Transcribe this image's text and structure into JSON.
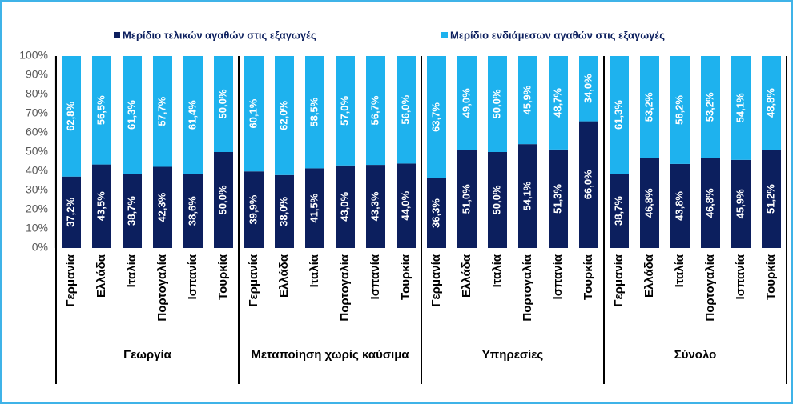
{
  "chart_data": {
    "type": "stacked_bar",
    "groups": [
      "Γεωργία",
      "Μεταποίηση χωρίς καύσιμα",
      "Υπηρεσίες",
      "Σύνολο"
    ],
    "categories": [
      "Γερμανία",
      "Ελλάδα",
      "Ιταλία",
      "Πορτογαλία",
      "Ισπανία",
      "Τουρκία",
      "Γερμανία",
      "Ελλάδα",
      "Ιταλία",
      "Πορτογαλία",
      "Ισπανία",
      "Τουρκία",
      "Γερμανία",
      "Ελλάδα",
      "Ιταλία",
      "Πορτογαλία",
      "Ισπανία",
      "Τουρκία",
      "Γερμανία",
      "Ελλάδα",
      "Ιταλία",
      "Πορτογαλία",
      "Ισπανία",
      "Τουρκία"
    ],
    "series": [
      {
        "name": "Μερίδιο τελικών αγαθών στις εξαγωγές",
        "color": "#0c1f5e",
        "values": [
          37.2,
          43.5,
          38.7,
          42.3,
          38.6,
          50.0,
          39.9,
          38.0,
          41.5,
          43.0,
          43.3,
          44.0,
          36.3,
          51.0,
          50.0,
          54.1,
          51.3,
          66.0,
          38.7,
          46.8,
          43.8,
          46.8,
          45.9,
          51.2
        ],
        "value_labels": [
          "37,2%",
          "43,5%",
          "38,7%",
          "42,3%",
          "38,6%",
          "50,0%",
          "39,9%",
          "38,0%",
          "41,5%",
          "43,0%",
          "43,3%",
          "44,0%",
          "36,3%",
          "51,0%",
          "50,0%",
          "54,1%",
          "51,3%",
          "66,0%",
          "38,7%",
          "46,8%",
          "43,8%",
          "46,8%",
          "45,9%",
          "51,2%"
        ]
      },
      {
        "name": "Μερίδιο ενδιάμεσων αγαθών στις εξαγωγές",
        "color": "#1eb2ee",
        "values": [
          62.8,
          56.5,
          61.3,
          57.7,
          61.4,
          50.0,
          60.1,
          62.0,
          58.5,
          57.0,
          56.7,
          56.0,
          63.7,
          49.0,
          50.0,
          45.9,
          48.7,
          34.0,
          61.3,
          53.2,
          56.2,
          53.2,
          54.1,
          48.8
        ],
        "value_labels": [
          "62,8%",
          "56,5%",
          "61,3%",
          "57,7%",
          "61,4%",
          "50,0%",
          "60,1%",
          "62,0%",
          "58,5%",
          "57,0%",
          "56,7%",
          "56,0%",
          "63,7%",
          "49,0%",
          "50,0%",
          "45,9%",
          "48,7%",
          "34,0%",
          "61,3%",
          "53,2%",
          "56,2%",
          "53,2%",
          "54,1%",
          "48,8%"
        ]
      }
    ],
    "ylim": [
      0,
      100
    ],
    "yticks": [
      {
        "value": 0,
        "label": "0%"
      },
      {
        "value": 10,
        "label": "10%"
      },
      {
        "value": 20,
        "label": "20%"
      },
      {
        "value": 30,
        "label": "30%"
      },
      {
        "value": 40,
        "label": "40%"
      },
      {
        "value": 50,
        "label": "50%"
      },
      {
        "value": 60,
        "label": "60%"
      },
      {
        "value": 70,
        "label": "70%"
      },
      {
        "value": 80,
        "label": "80%"
      },
      {
        "value": 90,
        "label": "90%"
      },
      {
        "value": 100,
        "label": "100%"
      }
    ],
    "legend": "top"
  }
}
